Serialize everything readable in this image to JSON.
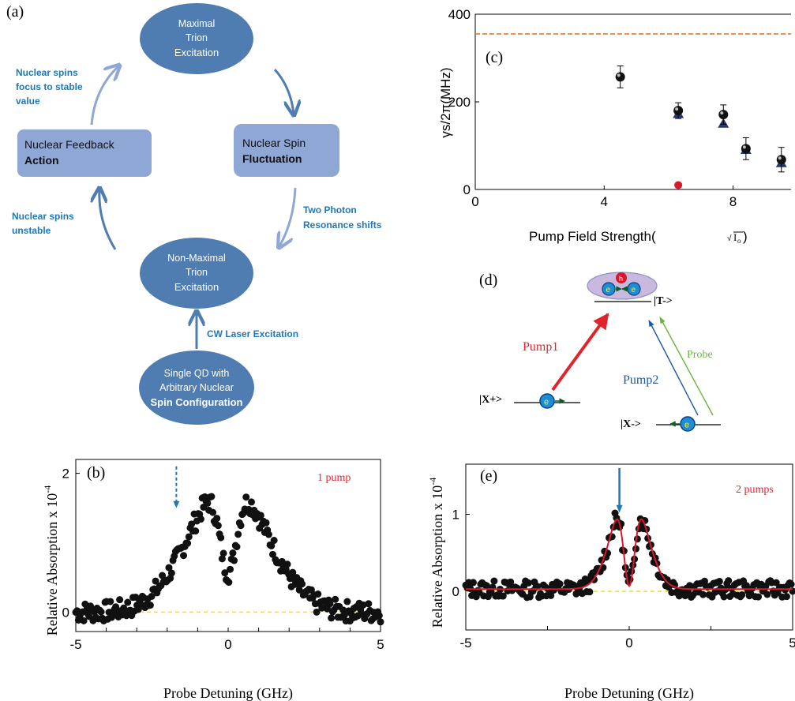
{
  "panel_labels": {
    "a": "(a)",
    "b": "(b)",
    "c": "(c)",
    "d": "(d)",
    "e": "(e)"
  },
  "cycle": {
    "maximal": {
      "line1": "Maximal",
      "line2": "Trion",
      "line3": "Excitation"
    },
    "fluctuation": {
      "line1": "Nuclear Spin",
      "line2": "Fluctuation"
    },
    "feedback": {
      "line1": "Nuclear Feedback",
      "line2": "Action"
    },
    "nonmaximal": {
      "line1": "Non-Maximal",
      "line2": "Trion",
      "line3": "Excitation"
    },
    "single_qd": {
      "line1": "Single QD with",
      "line2": "Arbitrary Nuclear",
      "line3": "Spin Configuration"
    },
    "label_focus": {
      "line1": "Nuclear spins",
      "line2": "focus to stable",
      "line3": "value"
    },
    "label_unstable": {
      "line1": "Nuclear spins",
      "line2": "unstable"
    },
    "label_two_photon": {
      "line1": "Two Photon",
      "line2": "Resonance shifts"
    },
    "label_cw": "CW Laser Excitation",
    "box_fill": "#4f7cb1",
    "rect_fill": "#8ea7d4",
    "label_color": "#1f78b4"
  },
  "level_diagram": {
    "T": "|T->",
    "Xp": "|X+>",
    "Xm": "|X->",
    "pump1": "Pump1",
    "pump2": "Pump2",
    "probe": "Probe",
    "h": "h",
    "e": "e",
    "pump1_color": "#e0242b",
    "pump2_color": "#1a5aa6",
    "probe_color": "#6ab33e"
  },
  "chart_data": [
    {
      "id": "c",
      "type": "scatter",
      "xlabel_main": "Pump Field Strength(",
      "xlabel_sqrt": "I",
      "xlabel_sub": "o",
      "xlabel_close": " )",
      "ylabel": "γs/2π(MHz)",
      "xlim": [
        0,
        9.8
      ],
      "ylim": [
        0,
        400
      ],
      "xticks": [
        "0",
        "4",
        "8"
      ],
      "xtick_values": [
        0,
        4,
        8
      ],
      "yticks": [
        "0",
        "200",
        "400"
      ],
      "ytick_values": [
        0,
        200,
        400
      ],
      "dashed_line_y": 355,
      "dashed_line_color": "#e36f1e",
      "circles": [
        {
          "x": 4.5,
          "y": 257,
          "err": 25
        },
        {
          "x": 6.3,
          "y": 180,
          "err": 18
        },
        {
          "x": 7.7,
          "y": 171,
          "err": 22
        },
        {
          "x": 8.4,
          "y": 93,
          "err": 25
        },
        {
          "x": 9.5,
          "y": 68,
          "err": 28
        }
      ],
      "triangles": [
        {
          "x": 6.3,
          "y": 172
        },
        {
          "x": 7.7,
          "y": 150
        },
        {
          "x": 8.4,
          "y": 90
        },
        {
          "x": 9.5,
          "y": 60
        }
      ],
      "red_point": {
        "x": 6.3,
        "y": 10
      }
    },
    {
      "id": "b",
      "type": "scatter",
      "annotation": "1 pump",
      "xlabel": "Probe Detuning (GHz)",
      "ylabel": "Relative Absorption x 10",
      "ylabel_exp": "-4",
      "xlim": [
        -5,
        5
      ],
      "ylim": [
        -0.28,
        2.2
      ],
      "xticks": [
        "-5",
        "0",
        "5"
      ],
      "xtick_values": [
        -5,
        0,
        5
      ],
      "yticks": [
        "0",
        "2"
      ],
      "ytick_values": [
        0,
        2
      ],
      "zero_line_color": "#f2e11b",
      "arrow_x": -1.7,
      "arrow_color": "#1f78b4"
    },
    {
      "id": "e",
      "type": "scatter",
      "annotation": "2 pumps",
      "xlabel": "Probe Detuning (GHz)",
      "ylabel": "Relative Absorption x 10",
      "ylabel_exp": "-4",
      "xlim": [
        -5,
        5
      ],
      "ylim": [
        -0.5,
        1.65
      ],
      "xticks": [
        "-5",
        "0",
        "5"
      ],
      "xtick_values": [
        -5,
        0,
        5
      ],
      "yticks": [
        "0",
        "1"
      ],
      "ytick_values": [
        0,
        1
      ],
      "zero_line_color": "#f2e11b",
      "fit_color": "#d7192a",
      "arrow_x": -0.3,
      "arrow_color": "#1f78b4"
    }
  ]
}
